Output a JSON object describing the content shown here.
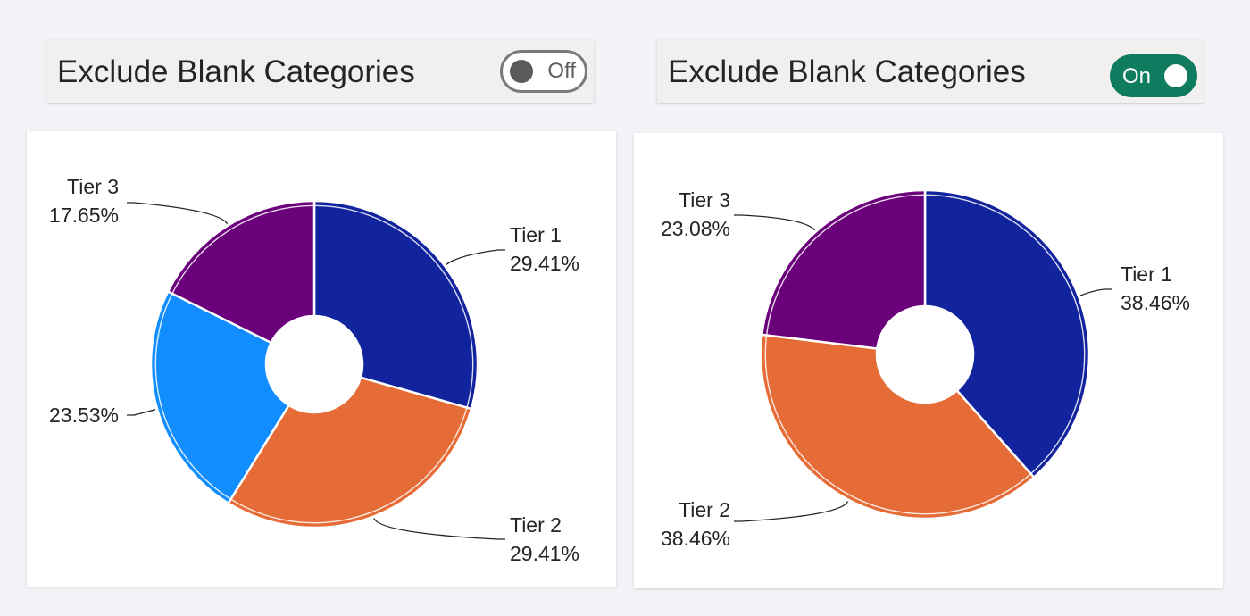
{
  "left": {
    "toggle": {
      "label": "Exclude Blank Categories",
      "state": "Off"
    }
  },
  "right": {
    "toggle": {
      "label": "Exclude Blank Categories",
      "state": "On"
    }
  },
  "colors": {
    "tier1": "#12239e",
    "tier2": "#e66c37",
    "blank": "#118dff",
    "tier3": "#6b007b",
    "toggle_on": "#0f7b5f"
  },
  "chart_data": [
    {
      "type": "pie",
      "variant": "donut",
      "slices": [
        {
          "category": "Tier 1",
          "value": 29.41,
          "label_pct": "29.41%",
          "color": "#12239e"
        },
        {
          "category": "Tier 2",
          "value": 29.41,
          "label_pct": "29.41%",
          "color": "#e66c37"
        },
        {
          "category": "",
          "value": 23.53,
          "label_pct": "23.53%",
          "color": "#118dff"
        },
        {
          "category": "Tier 3",
          "value": 17.65,
          "label_pct": "17.65%",
          "color": "#6b007b"
        }
      ]
    },
    {
      "type": "pie",
      "variant": "donut",
      "slices": [
        {
          "category": "Tier 1",
          "value": 38.46,
          "label_pct": "38.46%",
          "color": "#12239e"
        },
        {
          "category": "Tier 2",
          "value": 38.46,
          "label_pct": "38.46%",
          "color": "#e66c37"
        },
        {
          "category": "Tier 3",
          "value": 23.08,
          "label_pct": "23.08%",
          "color": "#6b007b"
        }
      ]
    }
  ]
}
